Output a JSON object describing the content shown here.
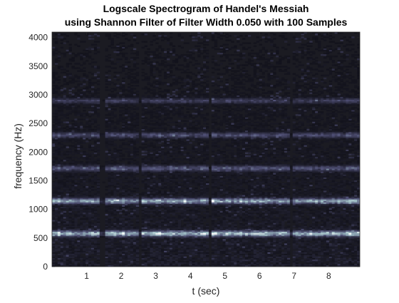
{
  "chart_data": {
    "type": "heatmap",
    "title": "Logscale Spectrogram of Handel's Messiah",
    "subtitle": "using Shannon Filter of Filter Width 0.050 with 100 Samples",
    "xlabel": "t (sec)",
    "ylabel": "frequency (Hz)",
    "xlim": [
      0,
      8.9
    ],
    "ylim": [
      0,
      4096
    ],
    "x_ticks": [
      {
        "value": 1,
        "label": "1"
      },
      {
        "value": 2,
        "label": "2"
      },
      {
        "value": 3,
        "label": "3"
      },
      {
        "value": 4,
        "label": "4"
      },
      {
        "value": 5,
        "label": "5"
      },
      {
        "value": 6,
        "label": "6"
      },
      {
        "value": 7,
        "label": "7"
      },
      {
        "value": 8,
        "label": "8"
      }
    ],
    "y_ticks": [
      {
        "value": 0,
        "label": "0"
      },
      {
        "value": 500,
        "label": "500"
      },
      {
        "value": 1000,
        "label": "1000"
      },
      {
        "value": 1500,
        "label": "1500"
      },
      {
        "value": 2000,
        "label": "2000"
      },
      {
        "value": 2500,
        "label": "2500"
      },
      {
        "value": 3000,
        "label": "3000"
      },
      {
        "value": 3500,
        "label": "3500"
      },
      {
        "value": 4000,
        "label": "4000"
      }
    ],
    "colormap": "bone",
    "background_color": "#1b1b22",
    "bright_bands": [
      {
        "freq": 580,
        "intensity": 0.9
      },
      {
        "freq": 1150,
        "intensity": 0.8
      },
      {
        "freq": 1720,
        "intensity": 0.4
      },
      {
        "freq": 2300,
        "intensity": 0.35
      },
      {
        "freq": 2900,
        "intensity": 0.28
      }
    ],
    "quiet_segments": [
      {
        "start": 1.35,
        "end": 1.5
      },
      {
        "start": 2.5,
        "end": 2.6
      },
      {
        "start": 4.55,
        "end": 4.65
      },
      {
        "start": 6.85,
        "end": 6.95
      }
    ],
    "grid": false
  }
}
